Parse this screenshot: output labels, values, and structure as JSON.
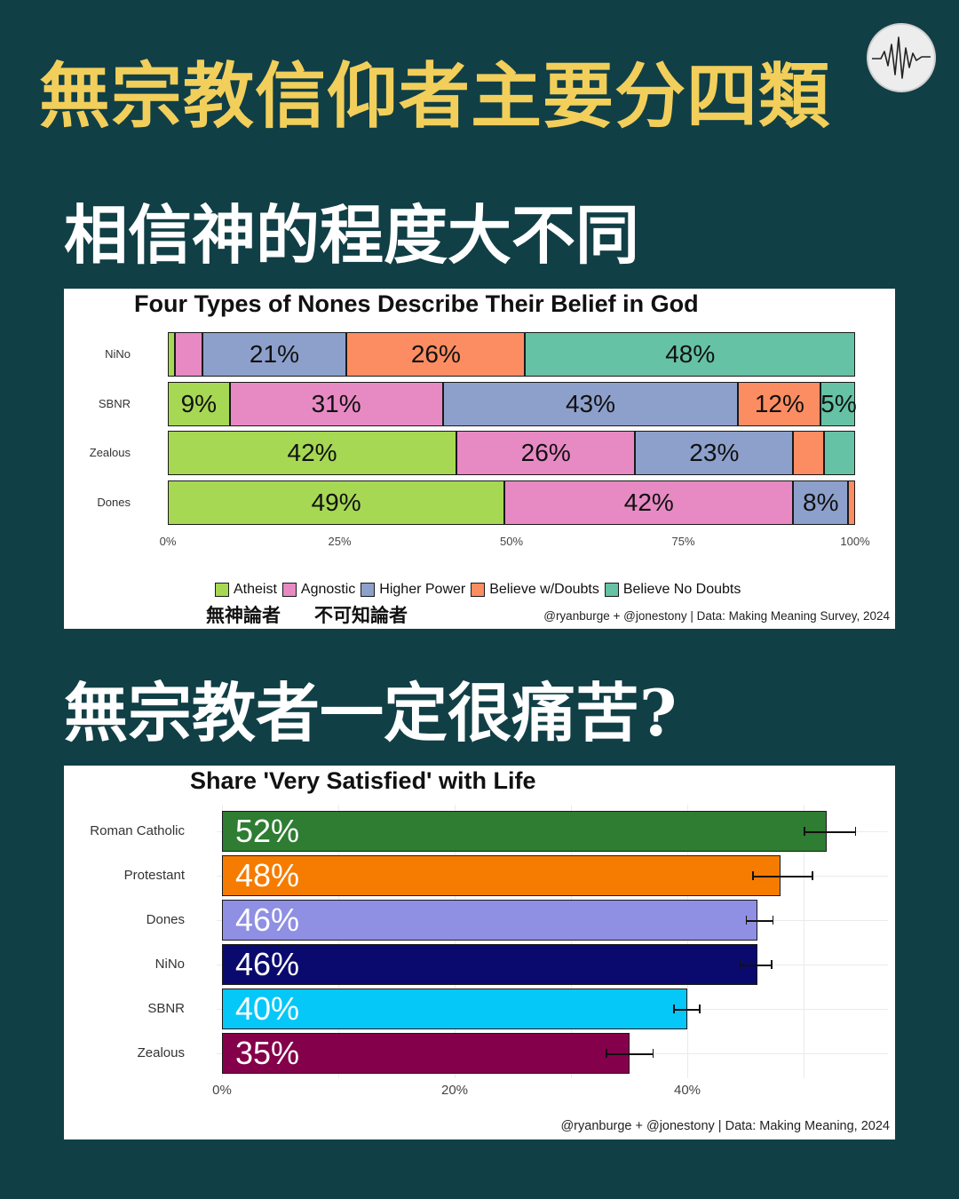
{
  "header": {
    "title": "無宗教信仰者主要分四類",
    "logo_icon": "heartbeat-waveform-icon"
  },
  "section1": {
    "heading": "相信神的程度大不同"
  },
  "section2": {
    "heading": "無宗教者一定很痛苦?"
  },
  "chart_data": [
    {
      "type": "bar",
      "orientation": "horizontal",
      "stacked": true,
      "title": "Four Types of Nones Describe Their Belief in God",
      "categories": [
        "NiNo",
        "SBNR",
        "Zealous",
        "Dones"
      ],
      "series": [
        {
          "name": "Atheist",
          "color": "#a6d854",
          "values": [
            1,
            9,
            42,
            49
          ]
        },
        {
          "name": "Agnostic",
          "color": "#e78ac3",
          "values": [
            4,
            31,
            26,
            42
          ]
        },
        {
          "name": "Higher Power",
          "color": "#8da0cb",
          "values": [
            21,
            43,
            23,
            8
          ]
        },
        {
          "name": "Believe w/Doubts",
          "color": "#fc8d62",
          "values": [
            26,
            12,
            4.5,
            1
          ]
        },
        {
          "name": "Believe No Doubts",
          "color": "#66c2a5",
          "values": [
            48,
            5,
            4.5,
            0
          ]
        }
      ],
      "data_labels": [
        [
          "",
          "",
          "21%",
          "26%",
          "48%"
        ],
        [
          "9%",
          "31%",
          "43%",
          "12%",
          "5%"
        ],
        [
          "42%",
          "26%",
          "23%",
          "",
          ""
        ],
        [
          "49%",
          "42%",
          "8%",
          "",
          ""
        ]
      ],
      "x_ticks": [
        "0%",
        "25%",
        "50%",
        "75%",
        "100%"
      ],
      "xlim": [
        0,
        100
      ],
      "legend_position": "bottom",
      "legend_notes": [
        "無神論者",
        "不可知論者"
      ],
      "credit": "@ryanburge + @jonestony | Data: Making Meaning Survey, 2024"
    },
    {
      "type": "bar",
      "orientation": "horizontal",
      "title": "Share 'Very Satisfied' with Life",
      "categories": [
        "Roman Catholic",
        "Protestant",
        "Dones",
        "NiNo",
        "SBNR",
        "Zealous"
      ],
      "values": [
        52,
        48,
        46,
        46,
        40,
        35
      ],
      "labels": [
        "52%",
        "48%",
        "46%",
        "46%",
        "40%",
        "35%"
      ],
      "error_low": [
        50.0,
        45.6,
        45.0,
        44.5,
        38.8,
        33.0
      ],
      "error_high": [
        54.4,
        50.7,
        47.3,
        47.2,
        41.0,
        37.0
      ],
      "colors": [
        "#2e7d32",
        "#f57c00",
        "#8f8fe4",
        "#0a0a6e",
        "#06c8f8",
        "#85004b"
      ],
      "x_ticks": [
        "0%",
        "20%",
        "40%"
      ],
      "xlim": [
        0,
        57
      ],
      "credit": "@ryanburge + @jonestony | Data: Making Meaning, 2024"
    }
  ]
}
